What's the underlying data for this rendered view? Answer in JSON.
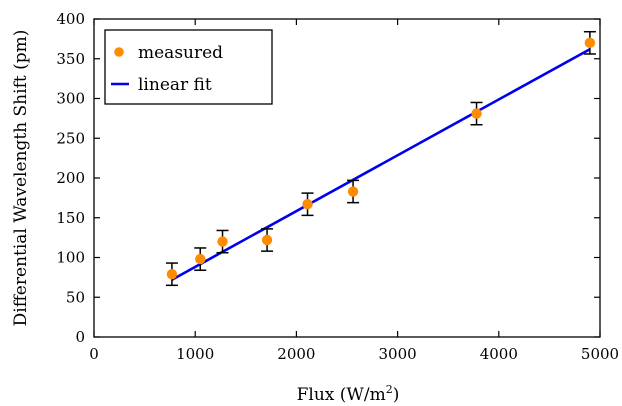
{
  "chart_data": {
    "type": "scatter",
    "title": "",
    "xlabel": "Flux (W/m",
    "xlabel_superscript": "2",
    "xlabel_suffix": ")",
    "ylabel": "Differential Wavelength Shift (pm)",
    "xlim": [
      0,
      5000
    ],
    "ylim": [
      0,
      400
    ],
    "x_ticks": [
      0,
      1000,
      2000,
      3000,
      4000,
      5000
    ],
    "y_ticks": [
      0,
      50,
      100,
      150,
      200,
      250,
      300,
      350,
      400
    ],
    "grid": false,
    "legend_position": "top-left",
    "series": [
      {
        "name": "measured",
        "kind": "points",
        "color": "#ff8c00",
        "x": [
          770,
          1050,
          1270,
          1710,
          2110,
          2560,
          3780,
          4900
        ],
        "y": [
          79,
          98,
          120,
          122,
          167,
          183,
          281,
          370
        ],
        "yerr": [
          14,
          14,
          14,
          14,
          14,
          14,
          14,
          14
        ]
      },
      {
        "name": "linear fit",
        "kind": "line",
        "color": "#0000ee",
        "x": [
          770,
          4900
        ],
        "y": [
          72,
          362
        ]
      }
    ]
  }
}
